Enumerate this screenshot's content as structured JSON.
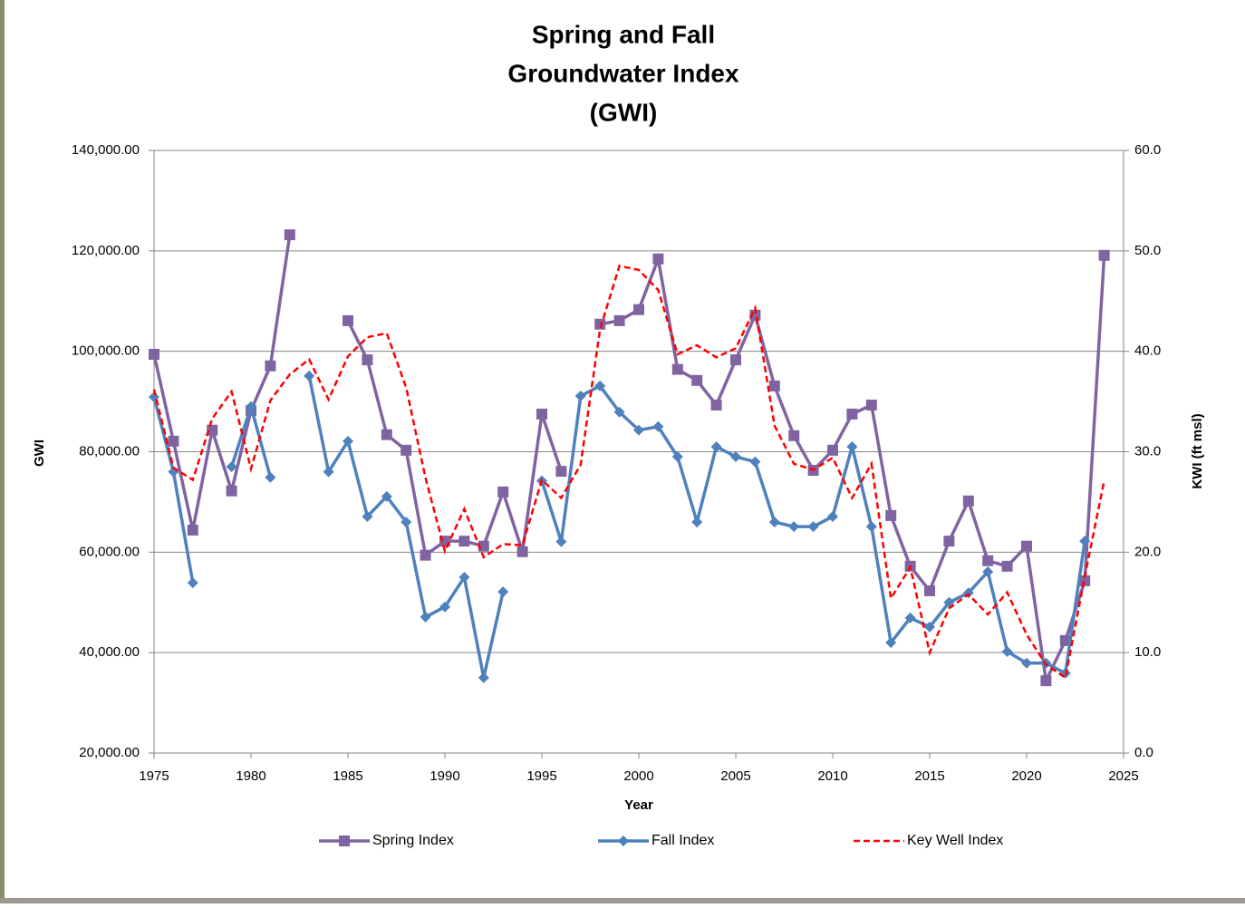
{
  "chart_data": {
    "type": "line",
    "title": [
      "Spring and Fall",
      "Groundwater Index",
      "(GWI)"
    ],
    "x_label": "Year",
    "y_label": "GWI",
    "y2_label": "KWI (ft msl)",
    "x": [
      1975,
      1976,
      1977,
      1978,
      1979,
      1980,
      1981,
      1982,
      1983,
      1984,
      1985,
      1986,
      1987,
      1988,
      1989,
      1990,
      1991,
      1992,
      1993,
      1994,
      1995,
      1996,
      1997,
      1998,
      1999,
      2000,
      2001,
      2002,
      2003,
      2004,
      2005,
      2006,
      2007,
      2008,
      2009,
      2010,
      2011,
      2012,
      2013,
      2014,
      2015,
      2016,
      2017,
      2018,
      2019,
      2020,
      2021,
      2022,
      2023,
      2024
    ],
    "xlim": [
      1975,
      2025
    ],
    "xticks": [
      1975,
      1980,
      1985,
      1990,
      1995,
      2000,
      2005,
      2010,
      2015,
      2020,
      2025
    ],
    "ylim": [
      20000,
      140000
    ],
    "yticks": [
      {
        "value": 20000,
        "label": "20,000.00"
      },
      {
        "value": 40000,
        "label": "40,000.00"
      },
      {
        "value": 60000,
        "label": "60,000.00"
      },
      {
        "value": 80000,
        "label": "80,000.00"
      },
      {
        "value": 100000,
        "label": "100,000.00"
      },
      {
        "value": 120000,
        "label": "120,000.00"
      },
      {
        "value": 140000,
        "label": "140,000.00"
      }
    ],
    "y2lim": [
      0,
      60
    ],
    "y2ticks": [
      {
        "value": 0,
        "label": "0.0"
      },
      {
        "value": 10,
        "label": "10.0"
      },
      {
        "value": 20,
        "label": "20.0"
      },
      {
        "value": 30,
        "label": "30.0"
      },
      {
        "value": 40,
        "label": "40.0"
      },
      {
        "value": 50,
        "label": "50.0"
      },
      {
        "value": 60,
        "label": "60.0"
      }
    ],
    "grid": true,
    "legend": "bottom",
    "series": [
      {
        "name": "Spring Index",
        "color": "#8064a2",
        "marker": "square",
        "values": [
          99400,
          82100,
          64400,
          84300,
          72200,
          88200,
          97100,
          123200,
          null,
          null,
          106100,
          98300,
          83400,
          80300,
          59400,
          62200,
          62200,
          61200,
          72000,
          60100,
          87500,
          76100,
          null,
          105400,
          106100,
          108300,
          118400,
          96400,
          94200,
          89300,
          98300,
          107200,
          93100,
          83200,
          76300,
          80300,
          87500,
          89300,
          67300,
          57200,
          52300,
          62200,
          70200,
          58300,
          57200,
          61200,
          34400,
          42400,
          54300,
          119100
        ]
      },
      {
        "name": "Fall Index",
        "color": "#4f81bd",
        "marker": "diamond",
        "values": [
          90900,
          76000,
          53900,
          null,
          77000,
          89000,
          74900,
          null,
          95100,
          76000,
          82100,
          67100,
          71100,
          66000,
          47100,
          49100,
          55000,
          35000,
          52100,
          null,
          74200,
          62100,
          91100,
          93100,
          87900,
          84300,
          85000,
          79000,
          66000,
          81000,
          79000,
          78000,
          66000,
          65100,
          65100,
          67100,
          81000,
          65100,
          42000,
          46900,
          45100,
          50000,
          51900,
          56100,
          40200,
          37900,
          37900,
          35900,
          62200,
          null
        ]
      },
      {
        "name": "Key Well Index",
        "color": "#ff0000",
        "marker": "none",
        "dashed": true,
        "axis": "y2",
        "values": [
          36.2,
          28.4,
          27.2,
          33.3,
          36.0,
          28.3,
          35.1,
          37.7,
          39.2,
          35.2,
          39.5,
          41.4,
          41.8,
          36.4,
          27.4,
          20.1,
          24.3,
          19.5,
          20.8,
          20.7,
          27.2,
          25.4,
          28.7,
          42.2,
          48.5,
          48.1,
          46.1,
          39.7,
          40.6,
          39.4,
          40.3,
          44.3,
          32.6,
          28.8,
          28.2,
          29.4,
          25.4,
          28.8,
          15.4,
          18.5,
          10.0,
          14.4,
          15.8,
          13.8,
          16.0,
          11.8,
          8.8,
          7.5,
          17.6,
          27.1
        ]
      }
    ]
  }
}
